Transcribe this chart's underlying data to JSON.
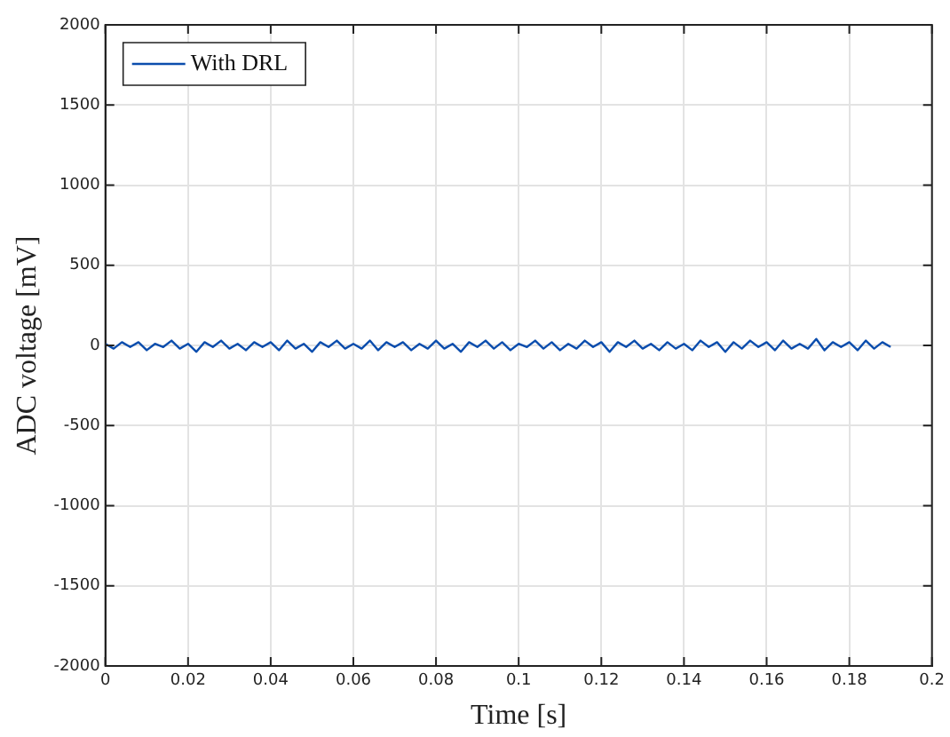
{
  "chart_data": {
    "type": "line",
    "xlabel": "Time [s]",
    "ylabel": "ADC voltage [mV]",
    "x": [
      0,
      0.002,
      0.004,
      0.006,
      0.008,
      0.01,
      0.012,
      0.014,
      0.016,
      0.018,
      0.02,
      0.022,
      0.024,
      0.026,
      0.028,
      0.03,
      0.032,
      0.034,
      0.036,
      0.038,
      0.04,
      0.042,
      0.044,
      0.046,
      0.048,
      0.05,
      0.052,
      0.054,
      0.056,
      0.058,
      0.06,
      0.062,
      0.064,
      0.066,
      0.068,
      0.07,
      0.072,
      0.074,
      0.076,
      0.078,
      0.08,
      0.082,
      0.084,
      0.086,
      0.088,
      0.09,
      0.092,
      0.094,
      0.096,
      0.098,
      0.1,
      0.102,
      0.104,
      0.106,
      0.108,
      0.11,
      0.112,
      0.114,
      0.116,
      0.118,
      0.12,
      0.122,
      0.124,
      0.126,
      0.128,
      0.13,
      0.132,
      0.134,
      0.136,
      0.138,
      0.14,
      0.142,
      0.144,
      0.146,
      0.148,
      0.15,
      0.152,
      0.154,
      0.156,
      0.158,
      0.16,
      0.162,
      0.164,
      0.166,
      0.168,
      0.17,
      0.172,
      0.174,
      0.176,
      0.178,
      0.18,
      0.182,
      0.184,
      0.186,
      0.188,
      0.19
    ],
    "series": [
      {
        "name": "With DRL",
        "color": "#0b4dad",
        "values": [
          10,
          -20,
          20,
          -10,
          20,
          -30,
          10,
          -10,
          30,
          -20,
          10,
          -40,
          20,
          -10,
          30,
          -20,
          10,
          -30,
          20,
          -10,
          20,
          -30,
          30,
          -20,
          10,
          -40,
          20,
          -10,
          30,
          -20,
          10,
          -20,
          30,
          -30,
          20,
          -10,
          20,
          -30,
          10,
          -20,
          30,
          -20,
          10,
          -40,
          20,
          -10,
          30,
          -20,
          20,
          -30,
          10,
          -10,
          30,
          -20,
          20,
          -30,
          10,
          -20,
          30,
          -10,
          20,
          -40,
          20,
          -10,
          30,
          -20,
          10,
          -30,
          20,
          -20,
          10,
          -30,
          30,
          -10,
          20,
          -40,
          20,
          -20,
          30,
          -10,
          20,
          -30,
          30,
          -20,
          10,
          -20,
          40,
          -30,
          20,
          -10,
          20,
          -30,
          30,
          -20,
          20,
          -10
        ]
      }
    ],
    "xlim": [
      0,
      0.2
    ],
    "xticks": [
      0,
      0.02,
      0.04,
      0.06,
      0.08,
      0.1,
      0.12,
      0.14,
      0.16,
      0.18,
      0.2
    ],
    "ylim": [
      -2000,
      2000
    ],
    "yticks": [
      -2000,
      -1500,
      -1000,
      -500,
      0,
      500,
      1000,
      1500,
      2000
    ],
    "grid": true,
    "legend": "top left",
    "marker": "none",
    "line_style": "solid"
  }
}
